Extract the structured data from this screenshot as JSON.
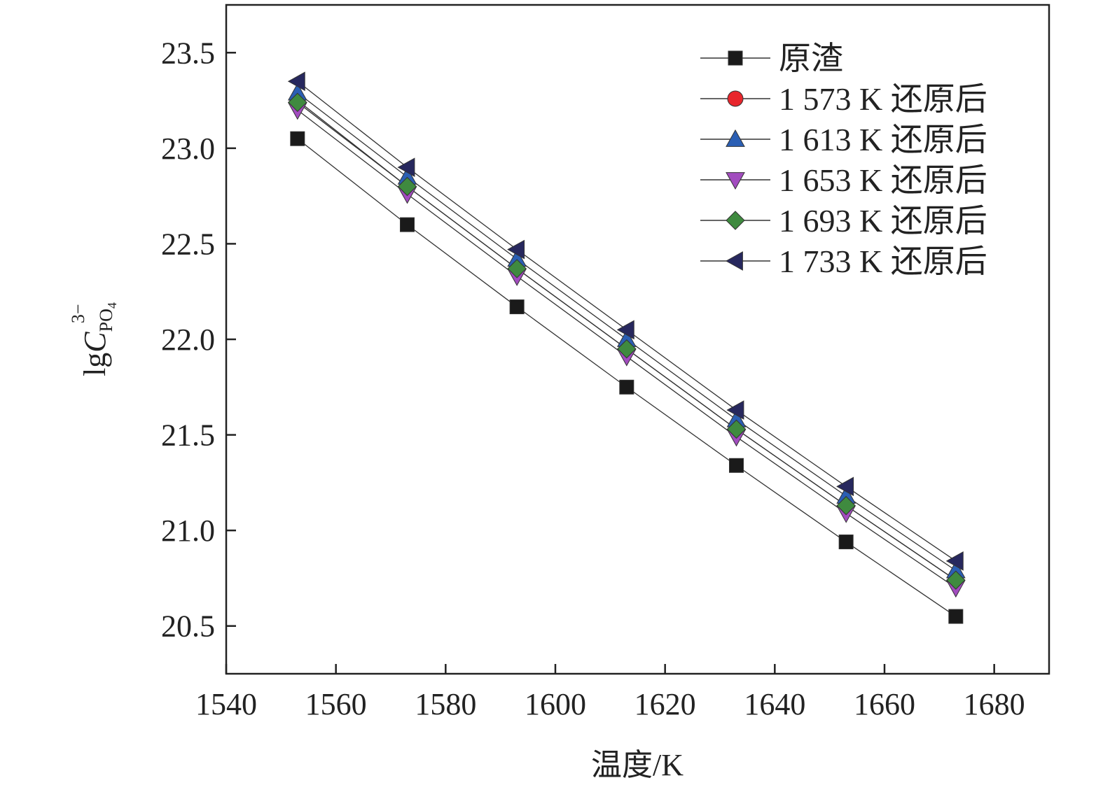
{
  "chart_data": {
    "type": "line",
    "xlabel": "温度/K",
    "ylabel": {
      "prefix": "lg",
      "symbol": "C",
      "subscript": "PO",
      "subscript_index": "4",
      "superscript": "3−"
    },
    "xlim": [
      1540,
      1690
    ],
    "ylim": [
      20.25,
      23.75
    ],
    "x_ticks": [
      1540,
      1560,
      1580,
      1600,
      1620,
      1640,
      1660,
      1680
    ],
    "x_tick_labels": [
      "1540",
      "1560",
      "1580",
      "1600",
      "1620",
      "1640",
      "1660",
      "1680"
    ],
    "y_ticks": [
      20.5,
      21.0,
      21.5,
      22.0,
      22.5,
      23.0,
      23.5
    ],
    "y_tick_labels": [
      "20.5",
      "21.0",
      "21.5",
      "22.0",
      "22.5",
      "23.0",
      "23.5"
    ],
    "grid": false,
    "legend_position": "top-right",
    "x": [
      1553,
      1573,
      1593,
      1613,
      1633,
      1653,
      1673
    ],
    "series": [
      {
        "name": "原渣",
        "marker": "square",
        "color": "#1a1a1a",
        "values": [
          23.05,
          22.6,
          22.17,
          21.75,
          21.34,
          20.94,
          20.55
        ]
      },
      {
        "name": "1 573 K 还原后",
        "marker": "circle",
        "color": "#e8262c",
        "values": [
          23.25,
          22.8,
          22.37,
          21.95,
          21.53,
          21.13,
          20.74
        ]
      },
      {
        "name": "1 613 K 还原后",
        "marker": "triangle-up",
        "color": "#2b5fb4",
        "values": [
          23.29,
          22.85,
          22.42,
          22.0,
          21.58,
          21.18,
          20.79
        ]
      },
      {
        "name": "1 653 K 还原后",
        "marker": "triangle-down",
        "color": "#a24cbf",
        "values": [
          23.2,
          22.76,
          22.33,
          21.91,
          21.49,
          21.09,
          20.7
        ]
      },
      {
        "name": "1 693 K 还原后",
        "marker": "diamond",
        "color": "#3f8a3f",
        "values": [
          23.24,
          22.8,
          22.37,
          21.95,
          21.53,
          21.13,
          20.74
        ]
      },
      {
        "name": "1 733 K 还原后",
        "marker": "triangle-left",
        "color": "#27285e",
        "values": [
          23.35,
          22.9,
          22.47,
          22.05,
          21.63,
          21.23,
          20.84
        ]
      }
    ]
  }
}
